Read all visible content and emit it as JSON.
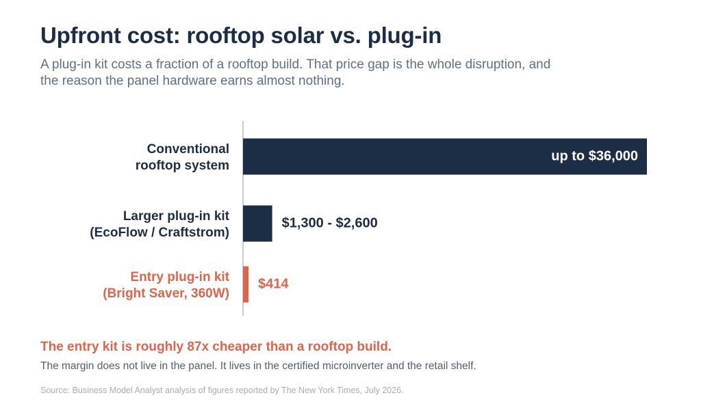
{
  "header": {
    "title": "Upfront cost: rooftop solar vs. plug-in",
    "subtitle": "A plug-in kit costs a fraction of a rooftop build. That price gap is the whole disruption, and the reason the panel hardware earns almost nothing."
  },
  "chart_data": {
    "type": "bar",
    "orientation": "horizontal",
    "categories": [
      [
        "Conventional",
        "rooftop system"
      ],
      [
        "Larger plug-in kit",
        "(EcoFlow / Craftstrom)"
      ],
      [
        "Entry plug-in kit",
        "(Bright Saver, 360W)"
      ]
    ],
    "values": [
      36000,
      2600,
      414
    ],
    "value_labels": [
      "up to $36,000",
      "$1,300 - $2,600",
      "$414"
    ],
    "label_placement": [
      "inside",
      "outside",
      "outside"
    ],
    "colors": [
      "#1c2e45",
      "#1c2e45",
      "#e0644a"
    ],
    "xlim": [
      0,
      36000
    ],
    "grid": false,
    "legend": "none"
  },
  "footer": {
    "callout": "The entry kit is roughly 87x cheaper than a rooftop build.",
    "note": "The margin does not live in the panel. It lives in the certified microinverter and the retail shelf.",
    "source": "Source: Business Model Analyst analysis of figures reported by The New York Times, July 2026."
  },
  "colors": {
    "navy": "#1c2e45",
    "accent": "#e0644a",
    "axis": "#c4ced8"
  }
}
